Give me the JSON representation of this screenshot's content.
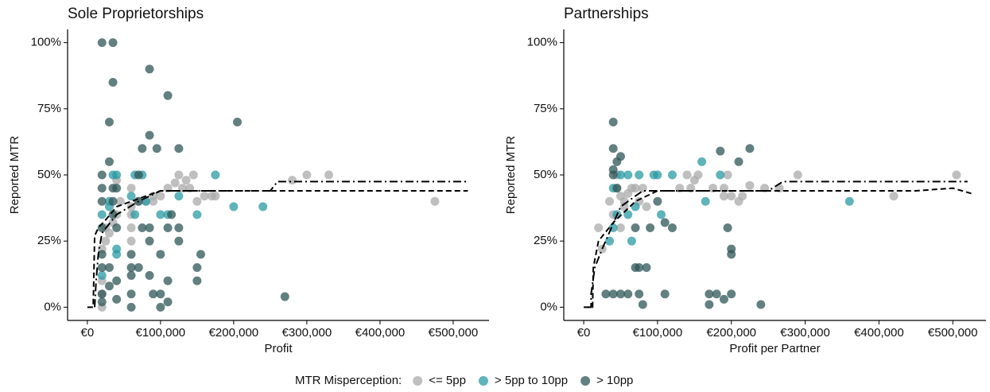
{
  "chart_data": [
    {
      "type": "scatter",
      "title": "Sole Proprietorships",
      "xlabel": "Profit",
      "ylabel": "Reported MTR",
      "xlim": [
        -27000,
        549000
      ],
      "ylim": [
        -5,
        105
      ],
      "xticks": [
        {
          "value": 0,
          "label": "€0"
        },
        {
          "value": 100000,
          "label": "€100,000"
        },
        {
          "value": 200000,
          "label": "€200,000"
        },
        {
          "value": 300000,
          "label": "€300,000"
        },
        {
          "value": 400000,
          "label": "€400,000"
        },
        {
          "value": 500000,
          "label": "€500,000"
        }
      ],
      "yticks": [
        {
          "value": 0,
          "label": "0%"
        },
        {
          "value": 25,
          "label": "25%"
        },
        {
          "value": 50,
          "label": "50%"
        },
        {
          "value": 75,
          "label": "75%"
        },
        {
          "value": 100,
          "label": "100%"
        }
      ],
      "legend_title": "MTR Misperception:",
      "series": [
        {
          "name": "<= 5pp",
          "color": "#a9a9a9",
          "x": [
            150000,
            160000,
            170000,
            175000,
            125000,
            130000,
            280000,
            300000,
            330000,
            475000,
            100000,
            90000,
            80000,
            70000,
            60000,
            60000,
            60000,
            25000,
            25000,
            30000,
            35000,
            40000,
            20000,
            20000,
            20000,
            20000,
            40000,
            45000,
            120000,
            110000,
            140000,
            145000,
            135000,
            60000,
            60000,
            90000
          ],
          "y": [
            40,
            42,
            42,
            42,
            50,
            45,
            48,
            50,
            50,
            40,
            42,
            40,
            40,
            40,
            45,
            35,
            30,
            30,
            25,
            28,
            32,
            35,
            22,
            10,
            5,
            0,
            48,
            40,
            47,
            45,
            45,
            50,
            48,
            25,
            38,
            42
          ]
        },
        {
          "name": "> 5pp to 10pp",
          "color": "#2a9aa3",
          "x": [
            20000,
            20000,
            35000,
            40000,
            30000,
            65000,
            75000,
            80000,
            100000,
            110000,
            125000,
            150000,
            175000,
            200000,
            240000,
            30000,
            40000,
            40000,
            60000,
            65000
          ],
          "y": [
            35,
            12,
            50,
            50,
            40,
            50,
            50,
            40,
            35,
            35,
            42,
            35,
            50,
            38,
            38,
            38,
            22,
            20,
            42,
            35
          ]
        },
        {
          "name": "> 10pp",
          "color": "#2f5557",
          "x": [
            20000,
            35000,
            35000,
            85000,
            110000,
            30000,
            205000,
            85000,
            75000,
            95000,
            125000,
            30000,
            20000,
            20000,
            20000,
            20000,
            20000,
            20000,
            20000,
            20000,
            35000,
            35000,
            35000,
            30000,
            30000,
            40000,
            40000,
            60000,
            60000,
            60000,
            60000,
            60000,
            70000,
            70000,
            75000,
            85000,
            85000,
            85000,
            90000,
            100000,
            100000,
            110000,
            110000,
            100000,
            125000,
            125000,
            155000,
            150000,
            150000,
            270000,
            40000,
            40000,
            70000,
            110000,
            115000
          ],
          "y": [
            100,
            100,
            85,
            90,
            80,
            70,
            70,
            65,
            60,
            60,
            60,
            55,
            50,
            45,
            40,
            30,
            20,
            15,
            5,
            2,
            45,
            40,
            35,
            15,
            8,
            10,
            3,
            20,
            15,
            12,
            5,
            0,
            50,
            15,
            30,
            30,
            25,
            12,
            5,
            5,
            0,
            10,
            2,
            20,
            25,
            30,
            20,
            15,
            10,
            4,
            45,
            30,
            40,
            30,
            35
          ]
        }
      ],
      "lines": [
        {
          "style": "dashed",
          "x": [
            0,
            8000,
            10000,
            15000,
            25000,
            40000,
            60000,
            80000,
            100000,
            520000
          ],
          "y": [
            0,
            0,
            27,
            30,
            33,
            38,
            40,
            42,
            44,
            44
          ]
        },
        {
          "style": "dashdot",
          "x": [
            10000,
            12000,
            15000,
            20000,
            40000,
            70000,
            100000,
            250000,
            260000,
            520000
          ],
          "y": [
            0,
            10,
            20,
            28,
            35,
            40,
            44,
            44,
            47.5,
            47.5
          ]
        }
      ]
    },
    {
      "type": "scatter",
      "title": "Partnerships",
      "xlabel": "Profit per Partner",
      "ylabel": "Reported MTR",
      "xlim": [
        -27000,
        545000
      ],
      "ylim": [
        -5,
        105
      ],
      "xticks": [
        {
          "value": 0,
          "label": "€0"
        },
        {
          "value": 100000,
          "label": "€100,000"
        },
        {
          "value": 200000,
          "label": "€200,000"
        },
        {
          "value": 300000,
          "label": "€300,000"
        },
        {
          "value": 400000,
          "label": "€400,000"
        },
        {
          "value": 500000,
          "label": "€500,000"
        }
      ],
      "yticks": [
        {
          "value": 0,
          "label": "0%"
        },
        {
          "value": 25,
          "label": "25%"
        },
        {
          "value": 50,
          "label": "50%"
        },
        {
          "value": 75,
          "label": "75%"
        },
        {
          "value": 100,
          "label": "100%"
        }
      ],
      "series": [
        {
          "name": "<= 5pp",
          "color": "#a9a9a9",
          "x": [
            20000,
            25000,
            35000,
            40000,
            45000,
            50000,
            55000,
            60000,
            65000,
            70000,
            75000,
            80000,
            85000,
            140000,
            145000,
            150000,
            155000,
            175000,
            190000,
            195000,
            200000,
            210000,
            215000,
            225000,
            245000,
            265000,
            290000,
            505000,
            420000,
            45000,
            50000,
            55000,
            190000,
            130000
          ],
          "y": [
            30,
            22,
            40,
            35,
            45,
            42,
            40,
            43,
            45,
            45,
            40,
            45,
            38,
            50,
            45,
            48,
            50,
            45,
            45,
            50,
            42,
            40,
            42,
            46,
            45,
            45,
            50,
            50,
            42,
            50,
            30,
            38,
            42,
            45
          ]
        },
        {
          "name": "> 5pp to 10pp",
          "color": "#2a9aa3",
          "x": [
            35000,
            40000,
            45000,
            50000,
            60000,
            65000,
            75000,
            60000,
            70000,
            95000,
            100000,
            120000,
            105000,
            160000,
            165000,
            185000,
            360000,
            40000
          ],
          "y": [
            25,
            45,
            35,
            50,
            50,
            25,
            50,
            35,
            38,
            50,
            50,
            50,
            35,
            55,
            40,
            50,
            40,
            30
          ]
        },
        {
          "name": "> 10pp",
          "color": "#2f5557",
          "x": [
            40000,
            40000,
            45000,
            50000,
            40000,
            45000,
            40000,
            100000,
            110000,
            120000,
            90000,
            70000,
            75000,
            85000,
            70000,
            30000,
            40000,
            50000,
            60000,
            75000,
            80000,
            110000,
            170000,
            180000,
            170000,
            190000,
            200000,
            200000,
            200000,
            195000,
            185000,
            210000,
            225000,
            240000
          ],
          "y": [
            70,
            60,
            55,
            57,
            52,
            45,
            50,
            40,
            32,
            30,
            30,
            30,
            15,
            15,
            15,
            5,
            5,
            5,
            5,
            5,
            1,
            5,
            5,
            5,
            1,
            3,
            5,
            20,
            22,
            30,
            59,
            55,
            60,
            1
          ]
        }
      ],
      "lines": [
        {
          "style": "dashed",
          "x": [
            0,
            12000,
            13000,
            20000,
            40000,
            70000,
            100000,
            450000,
            500000,
            525000
          ],
          "y": [
            0,
            0,
            15,
            25,
            32,
            40,
            44,
            44,
            45,
            43
          ]
        },
        {
          "style": "dashdot",
          "x": [
            5000,
            10000,
            10000,
            15000,
            25000,
            50000,
            80000,
            250000,
            270000,
            520000
          ],
          "y": [
            0,
            0,
            5,
            15,
            22,
            38,
            44,
            44,
            47.5,
            47.5
          ]
        }
      ]
    }
  ]
}
